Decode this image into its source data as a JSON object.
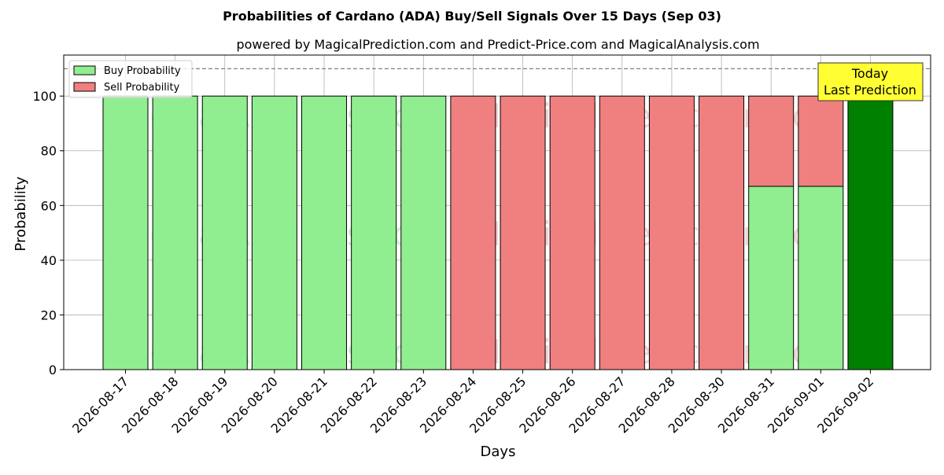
{
  "chart_data": {
    "type": "bar",
    "stacked": true,
    "title": "Probabilities of Cardano (ADA) Buy/Sell Signals Over 15 Days (Sep 03)",
    "subtitle": "powered by MagicalPrediction.com and Predict-Price.com and MagicalAnalysis.com",
    "xlabel": "Days",
    "ylabel": "Probability",
    "ylim": [
      0,
      115
    ],
    "yticks": [
      0,
      20,
      40,
      60,
      80,
      100
    ],
    "reference_line": 110,
    "grid": true,
    "legend_position": "top-left",
    "categories": [
      "2026-08-17",
      "2026-08-18",
      "2026-08-19",
      "2026-08-20",
      "2026-08-21",
      "2026-08-22",
      "2026-08-23",
      "2026-08-24",
      "2026-08-25",
      "2026-08-26",
      "2026-08-27",
      "2026-08-28",
      "2026-08-30",
      "2026-08-31",
      "2026-09-01",
      "2026-09-02"
    ],
    "series": [
      {
        "name": "Buy Probability",
        "color": "#90ee90",
        "values": [
          100,
          100,
          100,
          100,
          100,
          100,
          100,
          0,
          0,
          0,
          0,
          0,
          0,
          67,
          67,
          100
        ]
      },
      {
        "name": "Sell Probability",
        "color": "#f08080",
        "values": [
          0,
          0,
          0,
          0,
          0,
          0,
          0,
          100,
          100,
          100,
          100,
          100,
          100,
          33,
          33,
          0
        ]
      }
    ],
    "highlight": {
      "index": 15,
      "color": "#008000"
    },
    "annotation": {
      "line1": "Today",
      "line2": "Last Prediction",
      "background": "#ffff33"
    },
    "watermarks": [
      "MagicalAnalysis.com",
      "MagicalPrediction.com"
    ]
  }
}
